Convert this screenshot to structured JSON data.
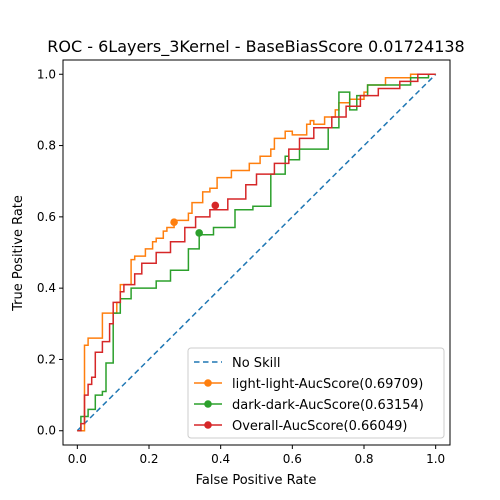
{
  "chart_data": {
    "type": "line",
    "title": "ROC - 6Layers_3Kernel - BaseBiasScore 0.01724138",
    "xlabel": "False Positive Rate",
    "ylabel": "True Positive Rate",
    "xlim": [
      -0.04,
      1.04
    ],
    "ylim": [
      -0.04,
      1.04
    ],
    "x_ticks": [
      "0.0",
      "0.2",
      "0.4",
      "0.6",
      "0.8",
      "1.0"
    ],
    "y_ticks": [
      "0.0",
      "0.2",
      "0.4",
      "0.6",
      "0.8",
      "1.0"
    ],
    "grid": false,
    "legend_position": "lower-right",
    "series": [
      {
        "name": "No Skill",
        "color": "#1f77b4",
        "style": "dashed",
        "x": [
          0,
          1
        ],
        "y": [
          0,
          1
        ]
      },
      {
        "name": "light-light-AucScore(0.69709)",
        "color": "#ff7f0e",
        "style": "step",
        "marker": {
          "x": 0.27,
          "y": 0.585
        },
        "x": [
          0.0,
          0.02,
          0.02,
          0.03,
          0.03,
          0.07,
          0.07,
          0.11,
          0.11,
          0.12,
          0.12,
          0.15,
          0.15,
          0.16,
          0.16,
          0.19,
          0.19,
          0.21,
          0.21,
          0.22,
          0.22,
          0.24,
          0.24,
          0.25,
          0.25,
          0.27,
          0.27,
          0.31,
          0.31,
          0.32,
          0.32,
          0.35,
          0.35,
          0.37,
          0.37,
          0.39,
          0.39,
          0.43,
          0.43,
          0.48,
          0.48,
          0.51,
          0.51,
          0.54,
          0.54,
          0.55,
          0.55,
          0.58,
          0.58,
          0.6,
          0.6,
          0.64,
          0.64,
          0.65,
          0.65,
          0.66,
          0.66,
          0.69,
          0.69,
          0.72,
          0.72,
          0.73,
          0.73,
          0.76,
          0.76,
          0.8,
          0.8,
          0.81,
          0.81,
          0.86,
          0.86,
          0.93,
          0.93,
          0.99,
          1.0
        ],
        "y": [
          0.0,
          0.0,
          0.24,
          0.24,
          0.26,
          0.26,
          0.33,
          0.33,
          0.36,
          0.36,
          0.41,
          0.41,
          0.48,
          0.48,
          0.49,
          0.49,
          0.51,
          0.51,
          0.53,
          0.53,
          0.54,
          0.54,
          0.56,
          0.56,
          0.57,
          0.57,
          0.59,
          0.59,
          0.61,
          0.61,
          0.64,
          0.64,
          0.67,
          0.67,
          0.68,
          0.68,
          0.71,
          0.71,
          0.73,
          0.73,
          0.75,
          0.75,
          0.77,
          0.77,
          0.79,
          0.79,
          0.82,
          0.82,
          0.84,
          0.84,
          0.83,
          0.83,
          0.86,
          0.86,
          0.87,
          0.87,
          0.86,
          0.86,
          0.88,
          0.88,
          0.9,
          0.9,
          0.92,
          0.92,
          0.93,
          0.93,
          0.95,
          0.95,
          0.97,
          0.97,
          0.99,
          0.99,
          1.0,
          1.0,
          1.0
        ]
      },
      {
        "name": "dark-dark-AucScore(0.63154)",
        "color": "#2ca02c",
        "style": "step",
        "marker": {
          "x": 0.34,
          "y": 0.555
        },
        "x": [
          0.0,
          0.01,
          0.01,
          0.03,
          0.03,
          0.05,
          0.05,
          0.07,
          0.07,
          0.08,
          0.08,
          0.1,
          0.1,
          0.12,
          0.12,
          0.15,
          0.15,
          0.22,
          0.22,
          0.26,
          0.26,
          0.31,
          0.31,
          0.34,
          0.34,
          0.38,
          0.38,
          0.44,
          0.44,
          0.49,
          0.49,
          0.54,
          0.54,
          0.58,
          0.58,
          0.59,
          0.59,
          0.62,
          0.62,
          0.7,
          0.7,
          0.73,
          0.73,
          0.76,
          0.76,
          0.78,
          0.78,
          0.81,
          0.81,
          0.93,
          0.93,
          0.98,
          0.98,
          1.0
        ],
        "y": [
          0.0,
          0.0,
          0.04,
          0.04,
          0.06,
          0.06,
          0.1,
          0.1,
          0.11,
          0.11,
          0.19,
          0.19,
          0.33,
          0.33,
          0.37,
          0.37,
          0.4,
          0.4,
          0.42,
          0.42,
          0.45,
          0.45,
          0.51,
          0.51,
          0.55,
          0.55,
          0.57,
          0.57,
          0.62,
          0.62,
          0.63,
          0.63,
          0.72,
          0.72,
          0.77,
          0.77,
          0.76,
          0.76,
          0.79,
          0.79,
          0.85,
          0.85,
          0.95,
          0.95,
          0.9,
          0.9,
          0.94,
          0.94,
          0.97,
          0.97,
          0.99,
          0.99,
          1.0,
          1.0
        ]
      },
      {
        "name": "Overall-AucScore(0.66049)",
        "color": "#d62728",
        "style": "step",
        "marker": {
          "x": 0.385,
          "y": 0.632
        },
        "x": [
          0.0,
          0.01,
          0.01,
          0.02,
          0.02,
          0.03,
          0.03,
          0.04,
          0.04,
          0.05,
          0.05,
          0.07,
          0.07,
          0.09,
          0.09,
          0.1,
          0.1,
          0.12,
          0.12,
          0.13,
          0.13,
          0.16,
          0.16,
          0.18,
          0.18,
          0.22,
          0.22,
          0.26,
          0.26,
          0.3,
          0.3,
          0.33,
          0.33,
          0.37,
          0.37,
          0.42,
          0.42,
          0.47,
          0.47,
          0.5,
          0.5,
          0.55,
          0.55,
          0.59,
          0.59,
          0.62,
          0.62,
          0.66,
          0.66,
          0.71,
          0.71,
          0.75,
          0.75,
          0.79,
          0.79,
          0.84,
          0.84,
          0.9,
          0.9,
          0.95,
          0.95,
          1.0
        ],
        "y": [
          0.0,
          0.0,
          0.02,
          0.02,
          0.1,
          0.1,
          0.13,
          0.13,
          0.15,
          0.15,
          0.22,
          0.22,
          0.25,
          0.25,
          0.3,
          0.3,
          0.36,
          0.36,
          0.39,
          0.39,
          0.41,
          0.41,
          0.44,
          0.44,
          0.47,
          0.47,
          0.5,
          0.5,
          0.53,
          0.53,
          0.57,
          0.57,
          0.6,
          0.6,
          0.62,
          0.62,
          0.65,
          0.65,
          0.69,
          0.69,
          0.72,
          0.72,
          0.75,
          0.75,
          0.79,
          0.79,
          0.82,
          0.82,
          0.85,
          0.85,
          0.88,
          0.88,
          0.91,
          0.91,
          0.94,
          0.94,
          0.96,
          0.96,
          0.98,
          0.98,
          1.0,
          1.0
        ]
      }
    ]
  }
}
